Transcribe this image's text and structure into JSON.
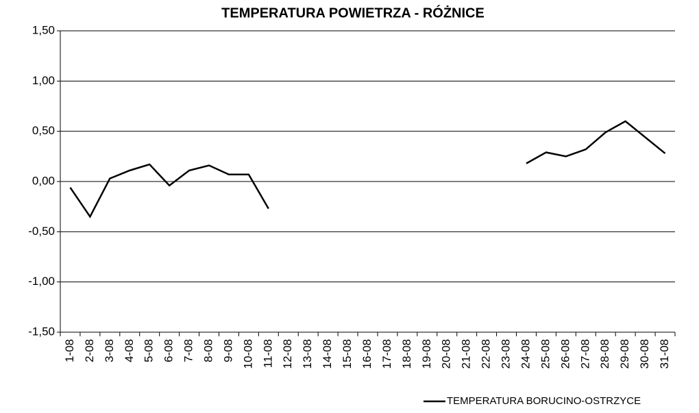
{
  "chart_data": {
    "type": "line",
    "title": "TEMPERATURA POWIETRZA - RÓŻNICE",
    "categories": [
      "1-08",
      "2-08",
      "3-08",
      "4-08",
      "5-08",
      "6-08",
      "7-08",
      "8-08",
      "9-08",
      "10-08",
      "11-08",
      "12-08",
      "13-08",
      "14-08",
      "15-08",
      "16-08",
      "17-08",
      "18-08",
      "19-08",
      "20-08",
      "21-08",
      "22-08",
      "23-08",
      "24-08",
      "25-08",
      "26-08",
      "27-08",
      "28-08",
      "29-08",
      "30-08",
      "31-08"
    ],
    "series": [
      {
        "name": "TEMPERATURA BORUCINO-OSTRZYCE",
        "color": "#000000",
        "values": [
          -0.06,
          -0.35,
          0.03,
          0.11,
          0.17,
          -0.04,
          0.11,
          0.16,
          0.07,
          0.07,
          -0.27,
          null,
          null,
          null,
          null,
          null,
          null,
          null,
          null,
          null,
          null,
          null,
          null,
          0.18,
          0.29,
          0.25,
          0.32,
          0.49,
          0.6,
          0.44,
          0.28
        ]
      }
    ],
    "ylim": [
      -1.5,
      1.5
    ],
    "yticks": [
      {
        "value": -1.5,
        "label": "-1,50"
      },
      {
        "value": -1,
        "label": "-1,00"
      },
      {
        "value": -0.5,
        "label": "-0,50"
      },
      {
        "value": 0,
        "label": "0,00"
      },
      {
        "value": 0.5,
        "label": "0,50"
      },
      {
        "value": 1,
        "label": "1,00"
      },
      {
        "value": 1.5,
        "label": "1,50"
      }
    ],
    "grid": true,
    "legend": "bottom-right"
  }
}
